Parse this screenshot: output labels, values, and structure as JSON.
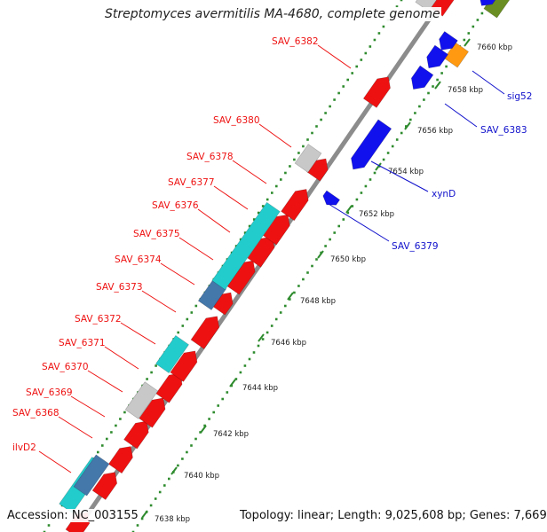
{
  "title": "Streptomyces avermitilis MA-4680, complete genome",
  "footer": {
    "accession": "Accession: NC_003155",
    "summary": "Topology: linear; Length: 9,025,608 bp; Genes: 7,669"
  },
  "colors": {
    "backbone": "#8c8c8c",
    "tick_dots": "#2e8b2e",
    "gene_red": "#ee1111",
    "gene_blue": "#1111ee",
    "gene_cyan": "#22cccc",
    "gene_gray": "#c8c8c8",
    "gene_steelblue": "#4477aa",
    "gene_orange": "#ff9911",
    "gene_olive": "#6b8e23",
    "label_red": "#ee1111",
    "label_blue": "#1111cc"
  },
  "scale_ticks": [
    "7638 kbp",
    "7640 kbp",
    "7642 kbp",
    "7644 kbp",
    "7646 kbp",
    "7648 kbp",
    "7650 kbp",
    "7652 kbp",
    "7654 kbp",
    "7656 kbp",
    "7658 kbp",
    "7660 kbp"
  ],
  "forward_labels": [
    "ilvD2",
    "SAV_6368",
    "SAV_6369",
    "SAV_6370",
    "SAV_6371",
    "SAV_6372",
    "SAV_6373",
    "SAV_6374",
    "SAV_6375",
    "SAV_6376",
    "SAV_6377",
    "SAV_6378",
    "SAV_6380",
    "SAV_6382"
  ],
  "reverse_labels": [
    "SAV_6379",
    "xynD",
    "SAV_6383",
    "sig52"
  ]
}
